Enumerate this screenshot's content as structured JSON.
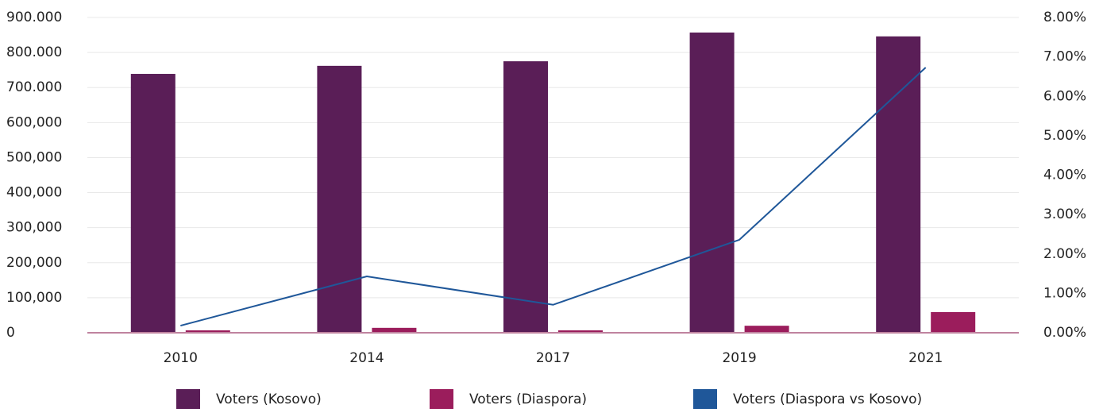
{
  "chart_data": {
    "type": "bar-line",
    "categories": [
      "2010",
      "2014",
      "2017",
      "2019",
      "2021"
    ],
    "series": [
      {
        "name": "Voters (Kosovo)",
        "color": "#5a1e57",
        "type": "bar",
        "values": [
          739000,
          762000,
          775000,
          857000,
          846000
        ]
      },
      {
        "name": "Voters (Diaspora)",
        "color": "#9b1d5c",
        "type": "bar",
        "values": [
          7000,
          14000,
          7000,
          20000,
          59000
        ]
      },
      {
        "name": "Voters (Diaspora vs Kosovo)",
        "color": "#1f5799",
        "type": "line",
        "axis": "y2",
        "values": [
          0.18,
          1.43,
          0.71,
          2.36,
          6.73
        ]
      }
    ],
    "ylim": [
      0,
      900000
    ],
    "yticks": [
      0,
      {
        "value": 100000,
        "label": "100,000"
      },
      {
        "value": 200000,
        "label": "200,000"
      },
      {
        "value": 300000,
        "label": "300,000"
      },
      {
        "value": 400000,
        "label": "400,000"
      },
      {
        "value": 500000,
        "label": "500,000"
      },
      {
        "value": 600000,
        "label": "600,000"
      },
      {
        "value": 700000,
        "label": "700.000"
      },
      {
        "value": 800000,
        "label": "800.000"
      },
      {
        "value": 900000,
        "label": "900.000"
      }
    ],
    "y2lim": [
      0,
      8
    ],
    "y2ticks": [
      {
        "value": 0,
        "label": "0.00%"
      },
      {
        "value": 1,
        "label": "1.00%"
      },
      {
        "value": 2,
        "label": "2.00%"
      },
      {
        "value": 3,
        "label": "3.00%"
      },
      {
        "value": 4,
        "label": "4.00%"
      },
      {
        "value": 5,
        "label": "5.00%"
      },
      {
        "value": 6,
        "label": "6.00%"
      },
      {
        "value": 7,
        "label": "7.00%"
      },
      {
        "value": 8,
        "label": "8.00%"
      }
    ],
    "grid": true,
    "legend": "bottom"
  }
}
